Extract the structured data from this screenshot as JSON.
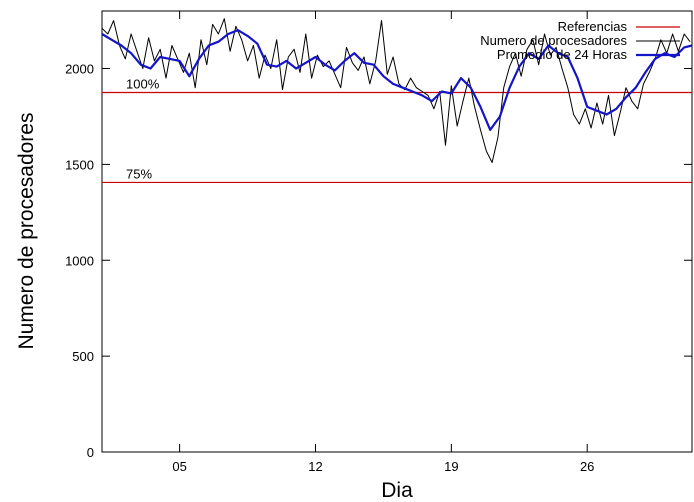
{
  "chart_data": {
    "type": "line",
    "xlabel": "Dia",
    "ylabel": "Numero de procesadores",
    "xlim": [
      1.0,
      31.4
    ],
    "ylim": [
      0,
      2300
    ],
    "x_ticks": [
      {
        "value": 5,
        "label": "05"
      },
      {
        "value": 12,
        "label": "12"
      },
      {
        "value": 19,
        "label": "19"
      },
      {
        "value": 26,
        "label": "26"
      }
    ],
    "y_ticks": [
      0,
      500,
      1000,
      1500,
      2000
    ],
    "grid": false,
    "legend_position": "top-right",
    "references": {
      "name": "Referencias",
      "color": "#cc0000",
      "lines": [
        {
          "value": 1875,
          "label": "100%"
        },
        {
          "value": 1406,
          "label": "75%"
        }
      ]
    },
    "series": [
      {
        "name": "Numero de procesadores",
        "color": "#000000",
        "x": [
          1.0,
          1.3,
          1.6,
          1.9,
          2.2,
          2.5,
          2.8,
          3.1,
          3.4,
          3.7,
          4.0,
          4.3,
          4.6,
          4.9,
          5.2,
          5.5,
          5.8,
          6.1,
          6.4,
          6.7,
          7.0,
          7.3,
          7.6,
          7.9,
          8.2,
          8.5,
          8.8,
          9.1,
          9.4,
          9.7,
          10.0,
          10.3,
          10.6,
          10.9,
          11.2,
          11.5,
          11.8,
          12.1,
          12.4,
          12.7,
          13.0,
          13.3,
          13.6,
          13.9,
          14.2,
          14.5,
          14.8,
          15.1,
          15.4,
          15.7,
          16.0,
          16.3,
          16.6,
          16.9,
          17.2,
          17.5,
          17.8,
          18.1,
          18.4,
          18.7,
          19.0,
          19.3,
          19.6,
          19.9,
          20.2,
          20.5,
          20.8,
          21.1,
          21.4,
          21.7,
          22.0,
          22.3,
          22.6,
          22.9,
          23.2,
          23.5,
          23.8,
          24.1,
          24.4,
          24.7,
          25.0,
          25.3,
          25.6,
          25.9,
          26.2,
          26.5,
          26.8,
          27.1,
          27.4,
          27.7,
          28.0,
          28.3,
          28.6,
          28.9,
          29.2,
          29.5,
          29.8,
          30.1,
          30.4,
          30.7,
          31.0,
          31.3
        ],
        "y": [
          2210,
          2180,
          2250,
          2120,
          2050,
          2180,
          2090,
          2000,
          2160,
          2040,
          2100,
          1950,
          2120,
          2050,
          1980,
          2080,
          1900,
          2150,
          2020,
          2230,
          2180,
          2260,
          2090,
          2220,
          2150,
          2040,
          2120,
          1950,
          2070,
          2000,
          2150,
          1890,
          2060,
          2100,
          1980,
          2180,
          1950,
          2070,
          2010,
          2040,
          1970,
          1900,
          2110,
          2030,
          1990,
          2060,
          1920,
          2040,
          2250,
          1970,
          2060,
          1920,
          1890,
          1950,
          1900,
          1880,
          1860,
          1790,
          1880,
          1600,
          1910,
          1700,
          1830,
          1950,
          1800,
          1680,
          1570,
          1510,
          1640,
          1900,
          2010,
          2080,
          1960,
          2100,
          2150,
          2020,
          2180,
          2070,
          2110,
          2000,
          1900,
          1760,
          1710,
          1790,
          1690,
          1820,
          1710,
          1860,
          1650,
          1770,
          1900,
          1830,
          1790,
          1920,
          1980,
          2050,
          2150,
          2080,
          2180,
          2090,
          2180,
          2140
        ]
      },
      {
        "name": "Promedio de 24 Horas",
        "color": "#1414c8",
        "x": [
          1.0,
          1.5,
          2.0,
          2.5,
          3.0,
          3.5,
          4.0,
          4.5,
          5.0,
          5.5,
          6.0,
          6.5,
          7.0,
          7.5,
          8.0,
          8.5,
          9.0,
          9.5,
          10.0,
          10.5,
          11.0,
          11.5,
          12.0,
          12.5,
          13.0,
          13.5,
          14.0,
          14.5,
          15.0,
          15.5,
          16.0,
          16.5,
          17.0,
          17.5,
          18.0,
          18.5,
          19.0,
          19.5,
          20.0,
          20.5,
          21.0,
          21.5,
          22.0,
          22.5,
          23.0,
          23.5,
          24.0,
          24.5,
          25.0,
          25.5,
          26.0,
          26.5,
          27.0,
          27.5,
          28.0,
          28.5,
          29.0,
          29.5,
          30.0,
          30.5,
          31.0,
          31.4
        ],
        "y": [
          2180,
          2150,
          2120,
          2080,
          2020,
          2000,
          2060,
          2050,
          2040,
          1960,
          2050,
          2120,
          2140,
          2180,
          2200,
          2170,
          2130,
          2020,
          2010,
          2040,
          2000,
          2030,
          2060,
          2020,
          1990,
          2040,
          2080,
          2030,
          2020,
          1960,
          1920,
          1900,
          1880,
          1860,
          1830,
          1880,
          1870,
          1950,
          1900,
          1800,
          1680,
          1750,
          1900,
          2010,
          2080,
          2050,
          2120,
          2080,
          2060,
          1950,
          1800,
          1780,
          1760,
          1790,
          1850,
          1900,
          1980,
          2050,
          2080,
          2060,
          2110,
          2120
        ]
      }
    ]
  }
}
